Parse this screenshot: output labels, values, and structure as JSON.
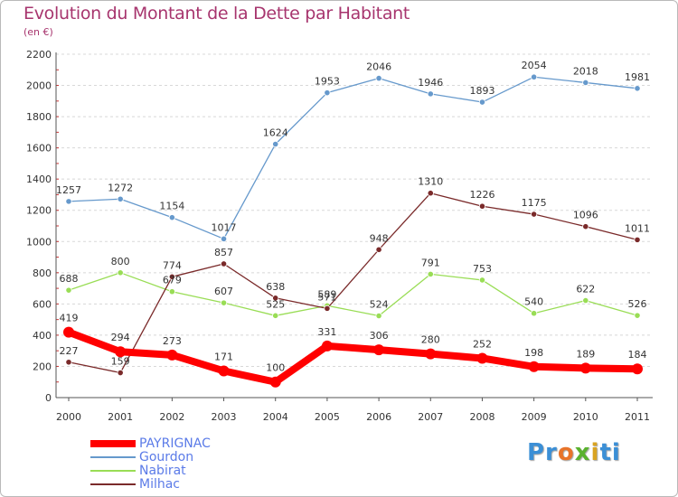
{
  "header": {
    "title": "Evolution du Montant de la Dette par Habitant",
    "subtitle": "(en €)"
  },
  "brand": {
    "name": "Proxiti"
  },
  "colors": {
    "title": "#a7356e",
    "legend_text": "#5b7be8",
    "grid": "#d8d8d8",
    "axis_text": "#333333"
  },
  "chart_data": {
    "type": "line",
    "categories": [
      "2000",
      "2001",
      "2002",
      "2003",
      "2004",
      "2005",
      "2006",
      "2007",
      "2008",
      "2009",
      "2010",
      "2011"
    ],
    "ylim": [
      0,
      2200
    ],
    "yticks": [
      0,
      200,
      400,
      600,
      800,
      1000,
      1200,
      1400,
      1600,
      1800,
      2000,
      2200
    ],
    "grid": "horizontal dashed",
    "legend_position": "bottom-left",
    "series": [
      {
        "name": "PAYRIGNAC",
        "color": "#ff0000",
        "values": [
          419,
          294,
          273,
          171,
          100,
          331,
          306,
          280,
          252,
          198,
          189,
          184
        ]
      },
      {
        "name": "Gourdon",
        "color": "#6699cc",
        "values": [
          1257,
          1272,
          1154,
          1017,
          1624,
          1953,
          2046,
          1946,
          1893,
          2054,
          2018,
          1981
        ]
      },
      {
        "name": "Nabirat",
        "color": "#99dd55",
        "values": [
          688,
          800,
          679,
          607,
          525,
          589,
          524,
          791,
          753,
          540,
          622,
          526
        ]
      },
      {
        "name": "Milhac",
        "color": "#7a2a2a",
        "values": [
          227,
          159,
          774,
          857,
          638,
          571,
          948,
          1310,
          1226,
          1175,
          1096,
          1011
        ]
      }
    ]
  }
}
